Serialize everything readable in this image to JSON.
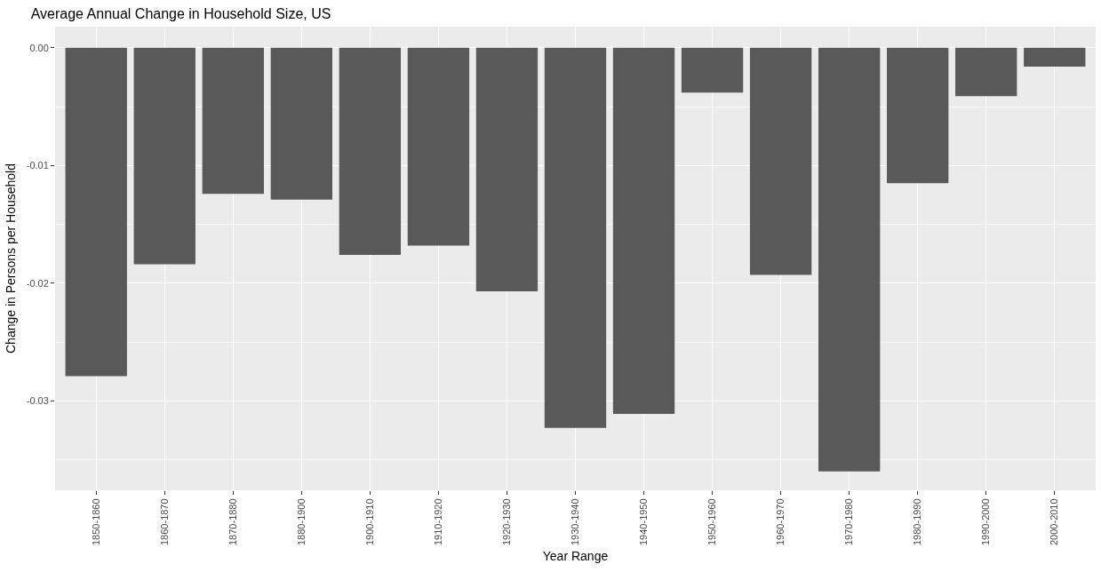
{
  "chart_data": {
    "type": "bar",
    "title": "Average Annual Change in Household Size, US",
    "xlabel": "Year Range",
    "ylabel": "Change in Persons per Household",
    "categories": [
      "1850-1860",
      "1860-1870",
      "1870-1880",
      "1880-1900",
      "1900-1910",
      "1910-1920",
      "1920-1930",
      "1930-1940",
      "1940-1950",
      "1950-1960",
      "1960-1970",
      "1970-1980",
      "1980-1990",
      "1990-2000",
      "2000-2010"
    ],
    "values": [
      -0.0279,
      -0.0184,
      -0.0124,
      -0.0129,
      -0.0176,
      -0.0168,
      -0.0207,
      -0.0323,
      -0.0311,
      -0.0038,
      -0.0193,
      -0.036,
      -0.0115,
      -0.0041,
      -0.0016
    ],
    "color": "#595959",
    "ylim": [
      -0.0376,
      0.0018
    ],
    "yticks": [
      {
        "value": 0,
        "label": "0.00"
      },
      {
        "value": -0.01,
        "label": "-0.01"
      },
      {
        "value": -0.02,
        "label": "-0.02"
      },
      {
        "value": -0.03,
        "label": "-0.03"
      }
    ],
    "grid": true
  }
}
